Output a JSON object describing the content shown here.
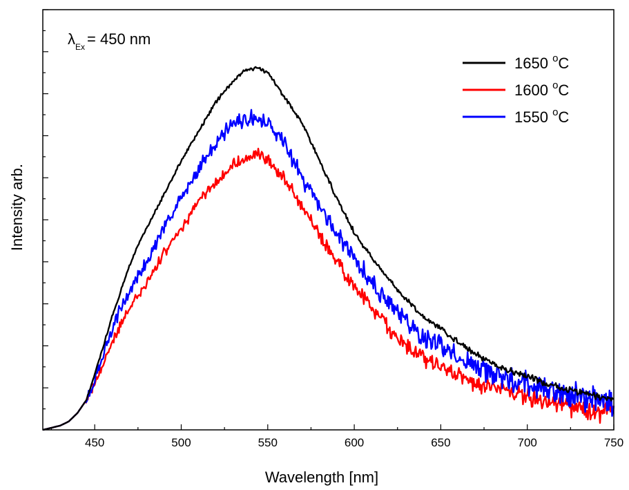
{
  "chart_data": {
    "type": "line",
    "title": "",
    "xlabel": "Wavelength [nm]",
    "ylabel": "Intensity arb.",
    "xlim": [
      420,
      750
    ],
    "ylim": [
      0,
      1.0
    ],
    "x_ticks": [
      450,
      500,
      550,
      600,
      650,
      700,
      750
    ],
    "annotation": {
      "symbol": "λ",
      "subscript": "Ex",
      "text": "= 450 nm"
    },
    "legend_position": "top-right",
    "grid": false,
    "series": [
      {
        "name": "1650",
        "unit_sup": "o",
        "unit": "C",
        "color": "#000000",
        "noise": 0.004,
        "points": [
          [
            420,
            0.0
          ],
          [
            425,
            0.005
          ],
          [
            430,
            0.01
          ],
          [
            435,
            0.02
          ],
          [
            440,
            0.04
          ],
          [
            445,
            0.07
          ],
          [
            450,
            0.13
          ],
          [
            455,
            0.2
          ],
          [
            460,
            0.27
          ],
          [
            465,
            0.33
          ],
          [
            470,
            0.39
          ],
          [
            475,
            0.44
          ],
          [
            480,
            0.48
          ],
          [
            490,
            0.56
          ],
          [
            500,
            0.64
          ],
          [
            510,
            0.71
          ],
          [
            520,
            0.78
          ],
          [
            530,
            0.83
          ],
          [
            535,
            0.85
          ],
          [
            540,
            0.86
          ],
          [
            545,
            0.86
          ],
          [
            550,
            0.85
          ],
          [
            555,
            0.82
          ],
          [
            560,
            0.79
          ],
          [
            570,
            0.73
          ],
          [
            580,
            0.64
          ],
          [
            590,
            0.55
          ],
          [
            600,
            0.47
          ],
          [
            610,
            0.41
          ],
          [
            620,
            0.36
          ],
          [
            630,
            0.31
          ],
          [
            640,
            0.27
          ],
          [
            650,
            0.24
          ],
          [
            660,
            0.21
          ],
          [
            670,
            0.18
          ],
          [
            680,
            0.16
          ],
          [
            690,
            0.14
          ],
          [
            700,
            0.13
          ],
          [
            710,
            0.11
          ],
          [
            720,
            0.1
          ],
          [
            730,
            0.09
          ],
          [
            740,
            0.08
          ],
          [
            750,
            0.07
          ]
        ]
      },
      {
        "name": "1600",
        "unit_sup": "o",
        "unit": "C",
        "color": "#ff0000",
        "noise": 0.012,
        "points": [
          [
            420,
            0.0
          ],
          [
            425,
            0.005
          ],
          [
            430,
            0.01
          ],
          [
            435,
            0.02
          ],
          [
            440,
            0.04
          ],
          [
            445,
            0.07
          ],
          [
            450,
            0.11
          ],
          [
            455,
            0.16
          ],
          [
            460,
            0.21
          ],
          [
            465,
            0.25
          ],
          [
            470,
            0.29
          ],
          [
            480,
            0.35
          ],
          [
            490,
            0.42
          ],
          [
            500,
            0.48
          ],
          [
            510,
            0.54
          ],
          [
            520,
            0.59
          ],
          [
            530,
            0.63
          ],
          [
            540,
            0.65
          ],
          [
            545,
            0.66
          ],
          [
            550,
            0.64
          ],
          [
            560,
            0.6
          ],
          [
            570,
            0.53
          ],
          [
            580,
            0.46
          ],
          [
            590,
            0.4
          ],
          [
            600,
            0.34
          ],
          [
            610,
            0.29
          ],
          [
            620,
            0.24
          ],
          [
            630,
            0.2
          ],
          [
            640,
            0.17
          ],
          [
            650,
            0.15
          ],
          [
            660,
            0.13
          ],
          [
            670,
            0.11
          ],
          [
            680,
            0.1
          ],
          [
            690,
            0.09
          ],
          [
            700,
            0.08
          ],
          [
            710,
            0.07
          ],
          [
            720,
            0.06
          ],
          [
            730,
            0.05
          ],
          [
            740,
            0.04
          ],
          [
            750,
            0.04
          ]
        ]
      },
      {
        "name": "1550",
        "unit_sup": "o",
        "unit": "C",
        "color": "#0000ff",
        "noise": 0.016,
        "points": [
          [
            420,
            0.0
          ],
          [
            425,
            0.005
          ],
          [
            430,
            0.01
          ],
          [
            435,
            0.02
          ],
          [
            440,
            0.04
          ],
          [
            445,
            0.07
          ],
          [
            450,
            0.12
          ],
          [
            455,
            0.18
          ],
          [
            460,
            0.24
          ],
          [
            465,
            0.29
          ],
          [
            470,
            0.33
          ],
          [
            480,
            0.4
          ],
          [
            490,
            0.48
          ],
          [
            500,
            0.55
          ],
          [
            510,
            0.62
          ],
          [
            520,
            0.68
          ],
          [
            530,
            0.73
          ],
          [
            540,
            0.74
          ],
          [
            545,
            0.74
          ],
          [
            550,
            0.73
          ],
          [
            560,
            0.68
          ],
          [
            570,
            0.6
          ],
          [
            580,
            0.53
          ],
          [
            590,
            0.47
          ],
          [
            600,
            0.41
          ],
          [
            610,
            0.35
          ],
          [
            620,
            0.3
          ],
          [
            630,
            0.26
          ],
          [
            640,
            0.22
          ],
          [
            650,
            0.2
          ],
          [
            660,
            0.17
          ],
          [
            670,
            0.15
          ],
          [
            680,
            0.13
          ],
          [
            690,
            0.12
          ],
          [
            700,
            0.11
          ],
          [
            710,
            0.1
          ],
          [
            720,
            0.09
          ],
          [
            730,
            0.08
          ],
          [
            740,
            0.07
          ],
          [
            750,
            0.06
          ]
        ]
      }
    ]
  }
}
